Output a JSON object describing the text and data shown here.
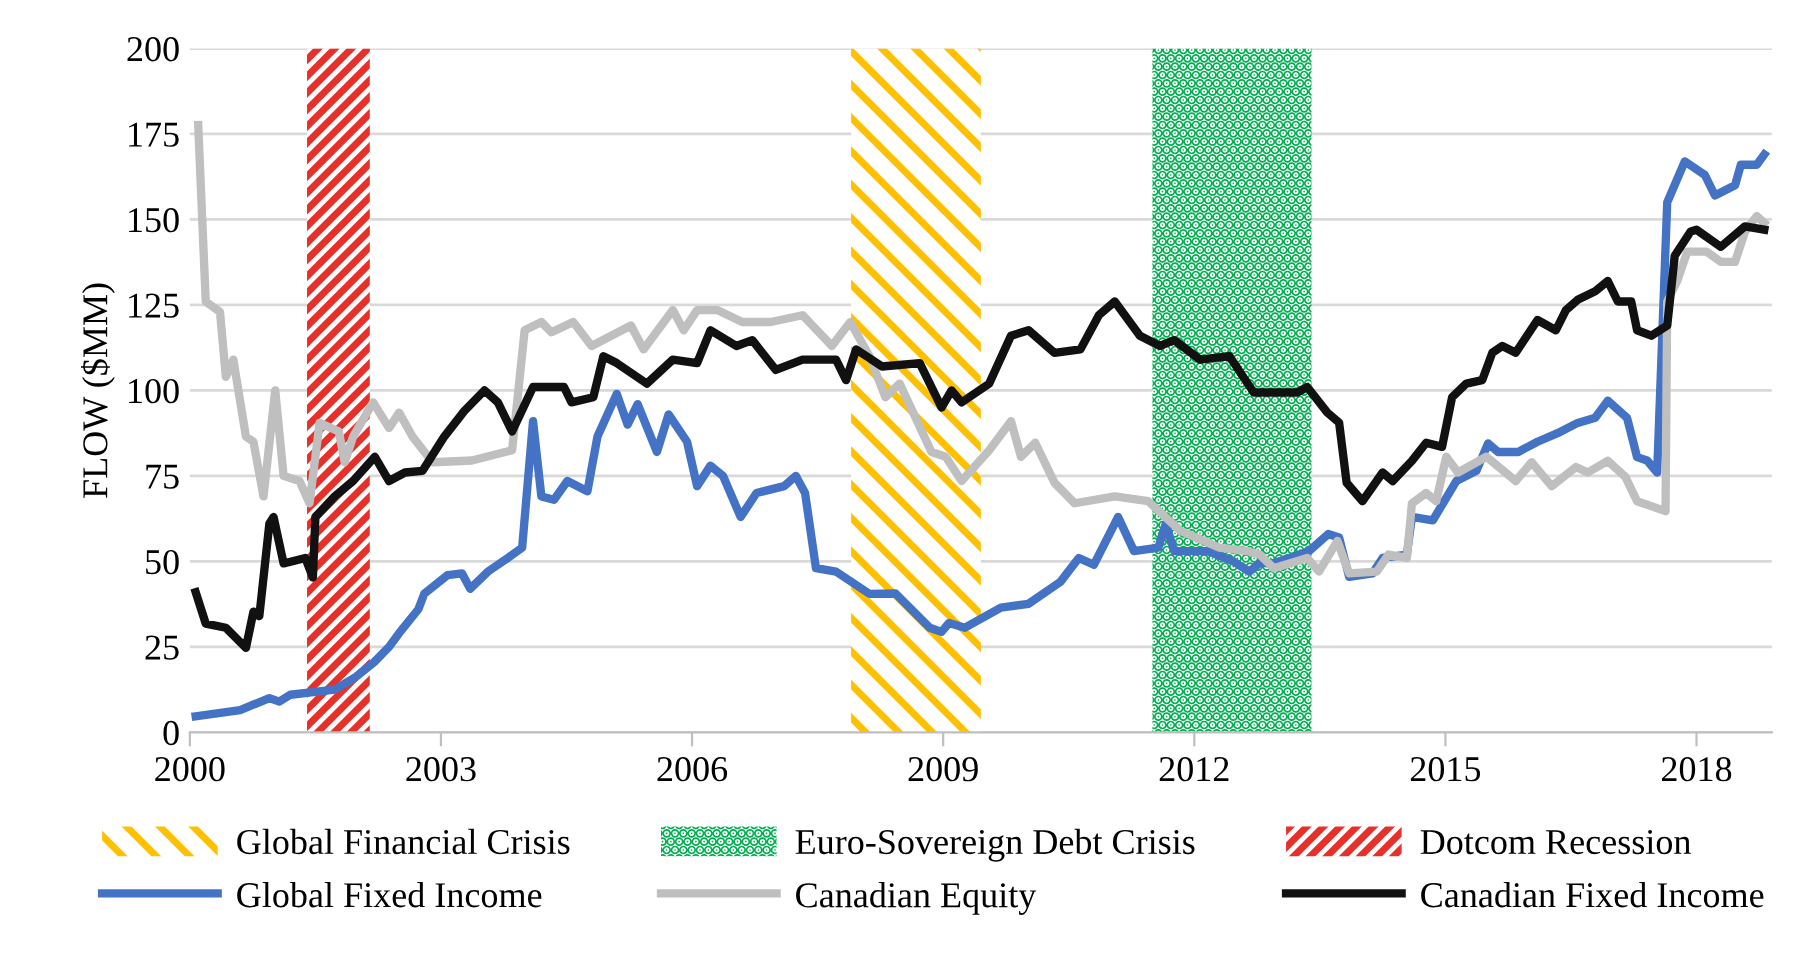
{
  "chart_data": {
    "type": "line",
    "ylabel": "FLOW ($MM)",
    "xlim": [
      2000,
      2018.9
    ],
    "xticks": [
      2000,
      2003,
      2006,
      2009,
      2012,
      2015,
      2018
    ],
    "ylim": [
      0,
      200
    ],
    "yticks": [
      0,
      25,
      50,
      75,
      100,
      125,
      150,
      175,
      200
    ],
    "grid": "y",
    "legend": "bottom",
    "line_style": "solid",
    "marker": "none",
    "bands": [
      {
        "axis": "x",
        "from": 2007.9,
        "to": 2009.45,
        "label": "Global Financial Crisis",
        "color": "#ffc000"
      },
      {
        "axis": "x",
        "from": 2011.5,
        "to": 2013.4,
        "label": "Euro-Sovereign Debt Crisis",
        "color": "#00b050"
      },
      {
        "axis": "x",
        "from": 2001.4,
        "to": 2002.15,
        "label": "Dotcom Recession",
        "color": "#e8302a"
      }
    ],
    "series": [
      {
        "name": "Global Fixed Income",
        "color": "#4472c4",
        "x": [
          2000.07,
          2000.6,
          2000.95,
          2001.07,
          2001.2,
          2001.55,
          2001.73,
          2001.97,
          2002.2,
          2002.38,
          2002.5,
          2002.73,
          2002.8,
          2003.08,
          2003.25,
          2003.35,
          2003.56,
          2003.8,
          2003.97,
          2004.1,
          2004.2,
          2004.35,
          2004.51,
          2004.75,
          2004.87,
          2005.1,
          2005.23,
          2005.35,
          2005.58,
          2005.72,
          2005.94,
          2006.06,
          2006.22,
          2006.37,
          2006.58,
          2006.77,
          2007.1,
          2007.24,
          2007.35,
          2007.48,
          2007.72,
          2008.12,
          2008.43,
          2008.84,
          2008.98,
          2009.07,
          2009.26,
          2009.69,
          2010.02,
          2010.4,
          2010.62,
          2010.8,
          2011.09,
          2011.28,
          2011.57,
          2011.66,
          2011.76,
          2012.16,
          2012.47,
          2012.66,
          2012.78,
          2012.95,
          2013.37,
          2013.6,
          2013.73,
          2013.85,
          2014.13,
          2014.25,
          2014.54,
          2014.6,
          2014.85,
          2015.13,
          2015.37,
          2015.51,
          2015.63,
          2015.87,
          2016.1,
          2016.34,
          2016.58,
          2016.79,
          2016.94,
          2017.17,
          2017.29,
          2017.41,
          2017.53,
          2017.65,
          2017.86,
          2018.1,
          2018.22,
          2018.46,
          2018.53,
          2018.72,
          2018.81
        ],
        "values": [
          4.7,
          6.5,
          10,
          9,
          11,
          12,
          12.5,
          16,
          20.5,
          25,
          29,
          36,
          40.5,
          46,
          46.5,
          42,
          47,
          51,
          54,
          91,
          69,
          68,
          73.5,
          70.5,
          86.5,
          99,
          90,
          96,
          82,
          93,
          85,
          72,
          78,
          75,
          63,
          70,
          72,
          75,
          70,
          48,
          47,
          40.5,
          40.6,
          30.6,
          29.4,
          32,
          30.6,
          36.5,
          37.6,
          44,
          51,
          49,
          63,
          53,
          54,
          61,
          53,
          53,
          50,
          47,
          49.5,
          49.5,
          53,
          58,
          57,
          45.5,
          46.5,
          51,
          52,
          63,
          62,
          73.5,
          76.5,
          84.5,
          82,
          82,
          85,
          87.5,
          90.5,
          92,
          97,
          92,
          80.5,
          79.5,
          76,
          155,
          167,
          163,
          157,
          160,
          166,
          166,
          169
        ]
      },
      {
        "name": "Canadian Equity",
        "color": "#bfbfbf",
        "x": [
          2000.1,
          2000.19,
          2000.36,
          2000.43,
          2000.52,
          2000.67,
          2000.76,
          2000.88,
          2001.02,
          2001.12,
          2001.31,
          2001.43,
          2001.55,
          2001.78,
          2001.85,
          2001.95,
          2002.19,
          2002.38,
          2002.5,
          2002.66,
          2002.9,
          2003.37,
          2003.85,
          2004.0,
          2004.2,
          2004.32,
          2004.58,
          2004.8,
          2005.27,
          2005.42,
          2005.77,
          2005.9,
          2006.06,
          2006.3,
          2006.6,
          2006.94,
          2007.32,
          2007.67,
          2007.89,
          2008.12,
          2008.31,
          2008.48,
          2008.67,
          2008.86,
          2009.03,
          2009.22,
          2009.55,
          2009.81,
          2009.93,
          2010.1,
          2010.33,
          2010.57,
          2011.05,
          2011.45,
          2011.83,
          2012.3,
          2012.64,
          2012.78,
          2012.95,
          2013.35,
          2013.49,
          2013.71,
          2013.85,
          2014.18,
          2014.32,
          2014.54,
          2014.6,
          2014.77,
          2014.89,
          2015.01,
          2015.15,
          2015.49,
          2015.84,
          2016.03,
          2016.27,
          2016.56,
          2016.7,
          2016.94,
          2017.15,
          2017.29,
          2017.63,
          2017.65,
          2017.77,
          2017.89,
          2018.12,
          2018.29,
          2018.46,
          2018.58,
          2018.72,
          2018.81
        ],
        "values": [
          177.6,
          126,
          123,
          104,
          109,
          86.5,
          85,
          69,
          100,
          75,
          73.5,
          67,
          90.5,
          88,
          79,
          86.5,
          96.5,
          89,
          93.5,
          86.5,
          79,
          79.5,
          82.5,
          117.6,
          120,
          117,
          120,
          113,
          119,
          112,
          123.5,
          117.6,
          123.5,
          123.5,
          120,
          120,
          122,
          113,
          120,
          110,
          98,
          102,
          92,
          82,
          80.6,
          73.5,
          82.5,
          91,
          80.6,
          84.7,
          73,
          67,
          69,
          67.6,
          59,
          54,
          53,
          52,
          48,
          51,
          47,
          56,
          46.5,
          47,
          52,
          51,
          67,
          70,
          67.6,
          80.6,
          76,
          80.6,
          73.5,
          79,
          72,
          77.6,
          76,
          79.4,
          74.7,
          67.6,
          64.7,
          126,
          132,
          140.6,
          140.6,
          137.6,
          137.6,
          146.5,
          151,
          149
        ]
      },
      {
        "name": "Canadian Fixed Income",
        "color": "#111111",
        "x": [
          2000.07,
          2000.19,
          2000.43,
          2000.67,
          2000.76,
          2000.83,
          2000.95,
          2001.0,
          2001.12,
          2001.38,
          2001.47,
          2001.5,
          2001.73,
          2001.95,
          2002.21,
          2002.38,
          2002.57,
          2002.78,
          2003.04,
          2003.28,
          2003.52,
          2003.68,
          2003.85,
          2004.1,
          2004.47,
          2004.56,
          2004.82,
          2004.94,
          2005.1,
          2005.46,
          2005.77,
          2006.06,
          2006.22,
          2006.53,
          2006.72,
          2007.0,
          2007.32,
          2007.72,
          2007.84,
          2007.96,
          2008.27,
          2008.72,
          2008.98,
          2009.1,
          2009.22,
          2009.55,
          2009.81,
          2010.02,
          2010.33,
          2010.64,
          2010.86,
          2011.05,
          2011.35,
          2011.59,
          2011.76,
          2012.07,
          2012.42,
          2012.71,
          2012.95,
          2013.23,
          2013.35,
          2013.59,
          2013.73,
          2013.82,
          2014.01,
          2014.25,
          2014.37,
          2014.6,
          2014.77,
          2014.96,
          2015.08,
          2015.25,
          2015.44,
          2015.56,
          2015.68,
          2015.84,
          2016.1,
          2016.32,
          2016.44,
          2016.58,
          2016.79,
          2016.94,
          2017.06,
          2017.22,
          2017.29,
          2017.46,
          2017.65,
          2017.74,
          2017.93,
          2018.0,
          2018.29,
          2018.58,
          2018.81
        ],
        "values": [
          41,
          31.8,
          30.6,
          24.7,
          35.3,
          34,
          61,
          63,
          49.4,
          51,
          45.3,
          63,
          69,
          73.5,
          80.6,
          73.5,
          76,
          76.5,
          86.5,
          94,
          100,
          96.5,
          88,
          101,
          101,
          96.5,
          98,
          110,
          108,
          102,
          109,
          108,
          117.6,
          113,
          114.7,
          106,
          109,
          109,
          103,
          112,
          107,
          108,
          95,
          100,
          96.5,
          102,
          116,
          117.6,
          111,
          112,
          122,
          126,
          116,
          113,
          114.7,
          109,
          110,
          99.4,
          99.4,
          99.4,
          101,
          93.5,
          90.6,
          73,
          67.6,
          76,
          73.5,
          79.4,
          84.7,
          83.5,
          98,
          102,
          103,
          111,
          113,
          111,
          120.6,
          117.6,
          123.5,
          126.5,
          129,
          132,
          126,
          126,
          117.6,
          116,
          119,
          139.4,
          146.5,
          147,
          142,
          148,
          147
        ]
      }
    ]
  }
}
